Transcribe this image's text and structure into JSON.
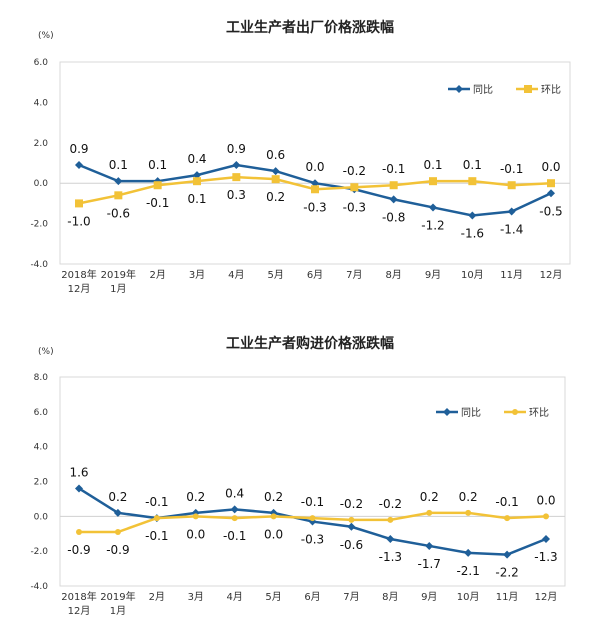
{
  "chart_data": [
    {
      "type": "line",
      "title": "工业生产者出厂价格涨跌幅",
      "ylabel": "(%)",
      "ylim": [
        -4.0,
        6.0
      ],
      "yticks": [
        "6.0",
        "4.0",
        "2.0",
        "0.0",
        "-2.0",
        "-4.0"
      ],
      "categories": [
        [
          "2018年",
          "12月"
        ],
        [
          "2019年",
          "1月"
        ],
        [
          "2月"
        ],
        [
          "3月"
        ],
        [
          "4月"
        ],
        [
          "5月"
        ],
        [
          "6月"
        ],
        [
          "7月"
        ],
        [
          "8月"
        ],
        [
          "9月"
        ],
        [
          "10月"
        ],
        [
          "11月"
        ],
        [
          "12月"
        ]
      ],
      "legend_position": "top-right",
      "grid": false,
      "series": [
        {
          "name": "同比",
          "color": "#1f5f99",
          "marker": "diamond",
          "values": [
            0.9,
            0.1,
            0.1,
            0.4,
            0.9,
            0.6,
            0.0,
            -0.3,
            -0.8,
            -1.2,
            -1.6,
            -1.4,
            -0.5
          ],
          "labels": [
            "0.9",
            "0.1",
            "0.1",
            "0.4",
            "0.9",
            "0.6",
            "0.0",
            "-0.3",
            "-0.8",
            "-1.2",
            "-1.6",
            "-1.4",
            "-0.5"
          ]
        },
        {
          "name": "环比",
          "color": "#f2c237",
          "marker": "square",
          "values": [
            -1.0,
            -0.6,
            -0.1,
            0.1,
            0.3,
            0.2,
            -0.3,
            -0.2,
            -0.1,
            0.1,
            0.1,
            -0.1,
            0.0
          ],
          "labels": [
            "-1.0",
            "-0.6",
            "-0.1",
            "0.1",
            "0.3",
            "0.2",
            "-0.3",
            "-0.2",
            "-0.1",
            "0.1",
            "0.1",
            "-0.1",
            "0.0"
          ]
        }
      ]
    },
    {
      "type": "line",
      "title": "工业生产者购进价格涨跌幅",
      "ylabel": "(%)",
      "ylim": [
        -4.0,
        8.0
      ],
      "yticks": [
        "8.0",
        "6.0",
        "4.0",
        "2.0",
        "0.0",
        "-2.0",
        "-4.0"
      ],
      "categories": [
        [
          "2018年",
          "12月"
        ],
        [
          "2019年",
          "1月"
        ],
        [
          "2月"
        ],
        [
          "3月"
        ],
        [
          "4月"
        ],
        [
          "5月"
        ],
        [
          "6月"
        ],
        [
          "7月"
        ],
        [
          "8月"
        ],
        [
          "9月"
        ],
        [
          "10月"
        ],
        [
          "11月"
        ],
        [
          "12月"
        ]
      ],
      "legend_position": "top-right",
      "grid": false,
      "series": [
        {
          "name": "同比",
          "color": "#1f5f99",
          "marker": "diamond",
          "values": [
            1.6,
            0.2,
            -0.1,
            0.2,
            0.4,
            0.2,
            -0.3,
            -0.6,
            -1.3,
            -1.7,
            -2.1,
            -2.2,
            -1.3
          ],
          "labels": [
            "1.6",
            "0.2",
            "-0.1",
            "0.2",
            "0.4",
            "0.2",
            "-0.3",
            "-0.6",
            "-1.3",
            "-1.7",
            "-2.1",
            "-2.2",
            "-1.3"
          ]
        },
        {
          "name": "环比",
          "color": "#f2c237",
          "marker": "circle",
          "values": [
            -0.9,
            -0.9,
            -0.1,
            0.0,
            -0.1,
            0.0,
            -0.1,
            -0.2,
            -0.2,
            0.2,
            0.2,
            -0.1,
            0.0
          ],
          "labels": [
            "-0.9",
            "-0.9",
            "-0.1",
            "0.0",
            "-0.1",
            "0.0",
            "-0.1",
            "-0.2",
            "-0.2",
            "0.2",
            "0.2",
            "-0.1",
            "0.0"
          ]
        }
      ]
    }
  ]
}
